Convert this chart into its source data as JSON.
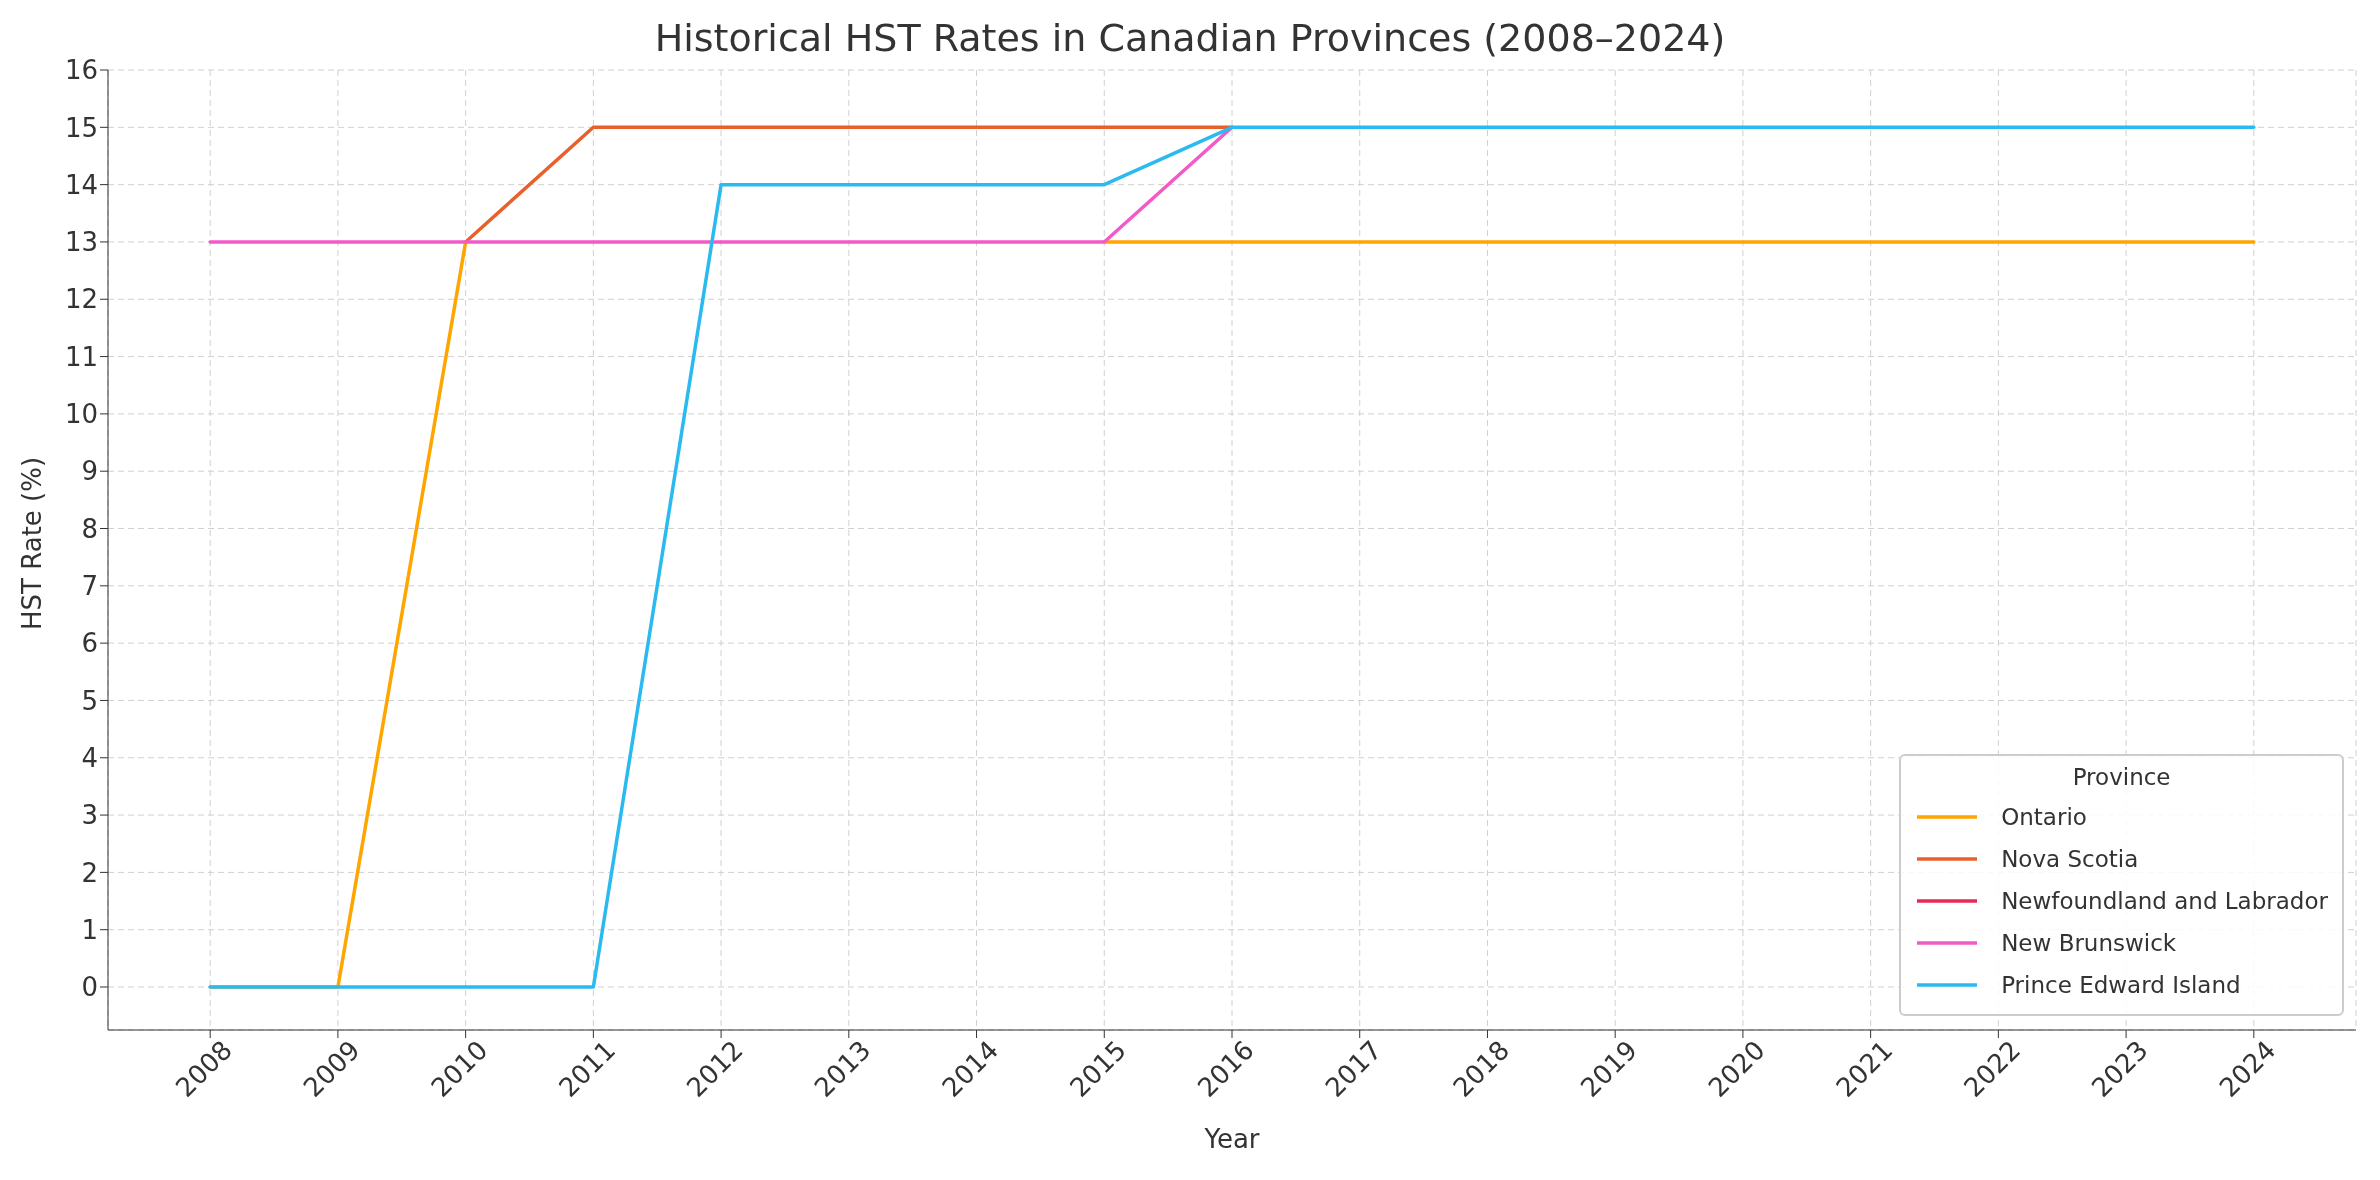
{
  "chart_data": {
    "type": "line",
    "title": "Historical HST Rates in Canadian Provinces (2008–2024)",
    "xlabel": "Year",
    "ylabel": "HST Rate (%)",
    "legend_title": "Province",
    "x": [
      2008,
      2009,
      2010,
      2011,
      2012,
      2013,
      2014,
      2015,
      2016,
      2017,
      2018,
      2019,
      2020,
      2021,
      2022,
      2023,
      2024
    ],
    "series": [
      {
        "name": "Ontario",
        "color": "#ffa500",
        "values": [
          0,
          0,
          13,
          null,
          null,
          null,
          null,
          13,
          13,
          13,
          13,
          13,
          13,
          13,
          13,
          13,
          13
        ]
      },
      {
        "name": "Nova Scotia",
        "color": "#e8612c",
        "values": [
          null,
          null,
          13,
          15,
          15,
          15,
          15,
          15,
          15,
          null,
          null,
          null,
          null,
          null,
          null,
          null,
          null
        ]
      },
      {
        "name": "Newfoundland and Labrador",
        "color": "#e8285a",
        "values": [
          null,
          null,
          null,
          null,
          null,
          null,
          null,
          null,
          null,
          null,
          null,
          null,
          null,
          null,
          null,
          null,
          null
        ]
      },
      {
        "name": "New Brunswick",
        "color": "#f25ac8",
        "values": [
          13,
          13,
          13,
          13,
          13,
          13,
          13,
          13,
          15,
          null,
          null,
          null,
          null,
          null,
          null,
          null,
          null
        ]
      },
      {
        "name": "Prince Edward Island",
        "color": "#2bbaf0",
        "values": [
          0,
          0,
          0,
          0,
          14,
          14,
          14,
          14,
          15,
          15,
          15,
          15,
          15,
          15,
          15,
          15,
          15
        ]
      }
    ],
    "xlim": [
      2007.2,
      2024.8
    ],
    "xticks": [
      2008,
      2009,
      2010,
      2011,
      2012,
      2013,
      2014,
      2015,
      2016,
      2017,
      2018,
      2019,
      2020,
      2021,
      2022,
      2023,
      2024
    ],
    "ylim": [
      -0.75,
      16
    ],
    "yticks": [
      0,
      1,
      2,
      3,
      4,
      5,
      6,
      7,
      8,
      9,
      10,
      11,
      12,
      13,
      14,
      15,
      16
    ],
    "grid": true,
    "legend": "bottom right",
    "marker": "none",
    "line_style": "solid"
  }
}
